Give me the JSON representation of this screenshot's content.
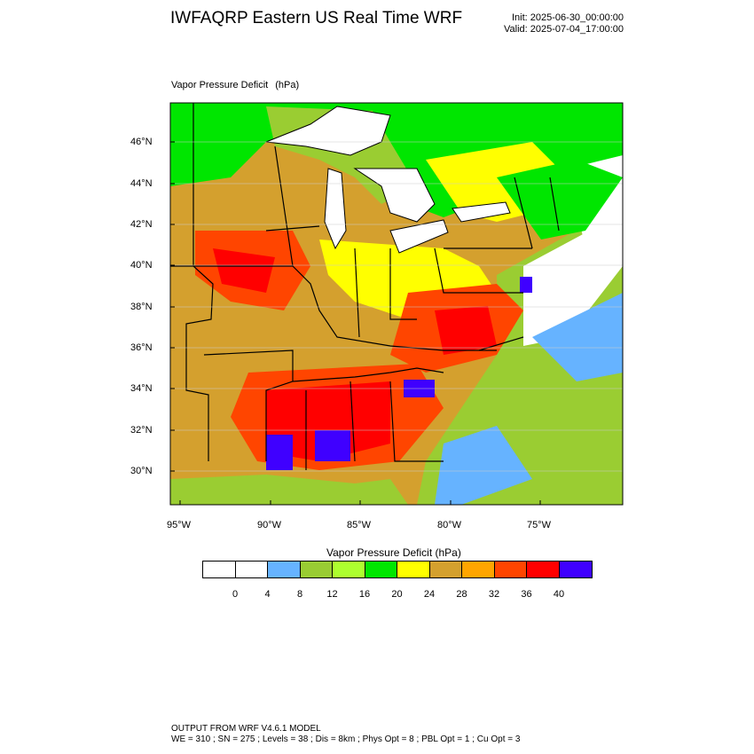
{
  "header": {
    "title": "IWFAQRP Eastern US Real Time WRF",
    "init": "Init: 2025-06-30_00:00:00",
    "valid": "Valid: 2025-07-04_17:00:00"
  },
  "map": {
    "field_name": "Vapor Pressure Deficit",
    "field_unit": "(hPa)",
    "lat_labels": [
      "46°N",
      "44°N",
      "42°N",
      "40°N",
      "38°N",
      "36°N",
      "34°N",
      "32°N",
      "30°N"
    ],
    "lon_labels": [
      "95°W",
      "90°W",
      "85°W",
      "80°W",
      "75°W"
    ]
  },
  "colorbar": {
    "title": "Vapor Pressure Deficit   (hPa)",
    "colors": [
      "#ffffff",
      "#ffffff",
      "#66b3ff",
      "#99cc33",
      "#adff2f",
      "#00e600",
      "#ffff00",
      "#d4a02e",
      "#ffa500",
      "#ff4500",
      "#ff0000",
      "#3f00ff"
    ],
    "labels": [
      "0",
      "4",
      "8",
      "12",
      "16",
      "20",
      "24",
      "28",
      "32",
      "36",
      "40"
    ]
  },
  "footer": {
    "line1": "OUTPUT FROM WRF V4.6.1 MODEL",
    "line2": "WE = 310 ; SN = 275 ; Levels = 38 ; Dis = 8km ; Phys Opt = 8 ; PBL Opt = 1 ; Cu Opt = 3"
  }
}
